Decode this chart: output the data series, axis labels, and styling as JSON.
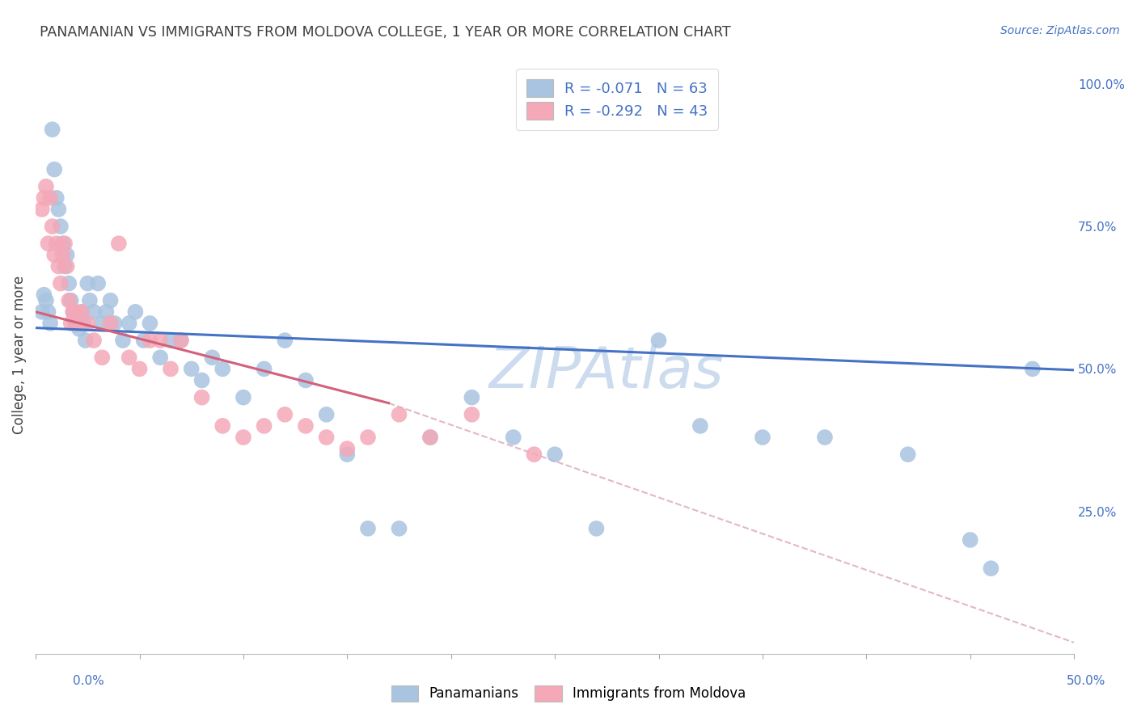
{
  "title": "PANAMANIAN VS IMMIGRANTS FROM MOLDOVA COLLEGE, 1 YEAR OR MORE CORRELATION CHART",
  "source": "Source: ZipAtlas.com",
  "legend_label1": "Panamanians",
  "legend_label2": "Immigrants from Moldova",
  "R1": -0.071,
  "N1": 63,
  "R2": -0.292,
  "N2": 43,
  "color1": "#a8c4e0",
  "color2": "#f4a8b8",
  "line_color1": "#4472c4",
  "line_color2": "#d4607a",
  "dashed_line_color": "#e0b0c0",
  "title_color": "#404040",
  "source_color": "#4472c4",
  "axis_color": "#4472c4",
  "watermark_color": "#ccdcee",
  "xlim": [
    0.0,
    0.5
  ],
  "ylim": [
    0.0,
    1.05
  ],
  "ylabel_right_labels": [
    "100.0%",
    "75.0%",
    "50.0%",
    "25.0%"
  ],
  "ylabel_right_values": [
    1.0,
    0.75,
    0.5,
    0.25
  ],
  "ylabel": "College, 1 year or more",
  "scatter1_x": [
    0.003,
    0.004,
    0.005,
    0.006,
    0.007,
    0.008,
    0.009,
    0.01,
    0.011,
    0.012,
    0.013,
    0.014,
    0.015,
    0.016,
    0.017,
    0.018,
    0.019,
    0.02,
    0.021,
    0.022,
    0.023,
    0.024,
    0.025,
    0.026,
    0.028,
    0.03,
    0.032,
    0.034,
    0.036,
    0.038,
    0.042,
    0.045,
    0.048,
    0.052,
    0.055,
    0.06,
    0.065,
    0.07,
    0.075,
    0.08,
    0.085,
    0.09,
    0.1,
    0.11,
    0.12,
    0.13,
    0.14,
    0.15,
    0.16,
    0.175,
    0.19,
    0.21,
    0.23,
    0.25,
    0.27,
    0.3,
    0.32,
    0.35,
    0.38,
    0.42,
    0.45,
    0.46,
    0.48
  ],
  "scatter1_y": [
    0.6,
    0.63,
    0.62,
    0.6,
    0.58,
    0.92,
    0.85,
    0.8,
    0.78,
    0.75,
    0.72,
    0.68,
    0.7,
    0.65,
    0.62,
    0.6,
    0.58,
    0.58,
    0.57,
    0.6,
    0.58,
    0.55,
    0.65,
    0.62,
    0.6,
    0.65,
    0.58,
    0.6,
    0.62,
    0.58,
    0.55,
    0.58,
    0.6,
    0.55,
    0.58,
    0.52,
    0.55,
    0.55,
    0.5,
    0.48,
    0.52,
    0.5,
    0.45,
    0.5,
    0.55,
    0.48,
    0.42,
    0.35,
    0.22,
    0.22,
    0.38,
    0.45,
    0.38,
    0.35,
    0.22,
    0.55,
    0.4,
    0.38,
    0.38,
    0.35,
    0.2,
    0.15,
    0.5
  ],
  "scatter2_x": [
    0.003,
    0.004,
    0.005,
    0.006,
    0.007,
    0.008,
    0.009,
    0.01,
    0.011,
    0.012,
    0.013,
    0.014,
    0.015,
    0.016,
    0.017,
    0.018,
    0.019,
    0.02,
    0.022,
    0.025,
    0.028,
    0.032,
    0.036,
    0.04,
    0.045,
    0.05,
    0.055,
    0.06,
    0.065,
    0.07,
    0.08,
    0.09,
    0.1,
    0.11,
    0.12,
    0.13,
    0.14,
    0.15,
    0.16,
    0.175,
    0.19,
    0.21,
    0.24
  ],
  "scatter2_y": [
    0.78,
    0.8,
    0.82,
    0.72,
    0.8,
    0.75,
    0.7,
    0.72,
    0.68,
    0.65,
    0.7,
    0.72,
    0.68,
    0.62,
    0.58,
    0.6,
    0.6,
    0.58,
    0.6,
    0.58,
    0.55,
    0.52,
    0.58,
    0.72,
    0.52,
    0.5,
    0.55,
    0.55,
    0.5,
    0.55,
    0.45,
    0.4,
    0.38,
    0.4,
    0.42,
    0.4,
    0.38,
    0.36,
    0.38,
    0.42,
    0.38,
    0.42,
    0.35
  ],
  "blue_line_x0": 0.0,
  "blue_line_y0": 0.572,
  "blue_line_x1": 0.5,
  "blue_line_y1": 0.498,
  "pink_line_x0": 0.0,
  "pink_line_y0": 0.6,
  "pink_line_x1": 0.17,
  "pink_line_y1": 0.44,
  "dash_line_x0": 0.17,
  "dash_line_y0": 0.44,
  "dash_line_x1": 0.5,
  "dash_line_y1": 0.02,
  "background_color": "#ffffff",
  "grid_color": "#d8d8d8"
}
